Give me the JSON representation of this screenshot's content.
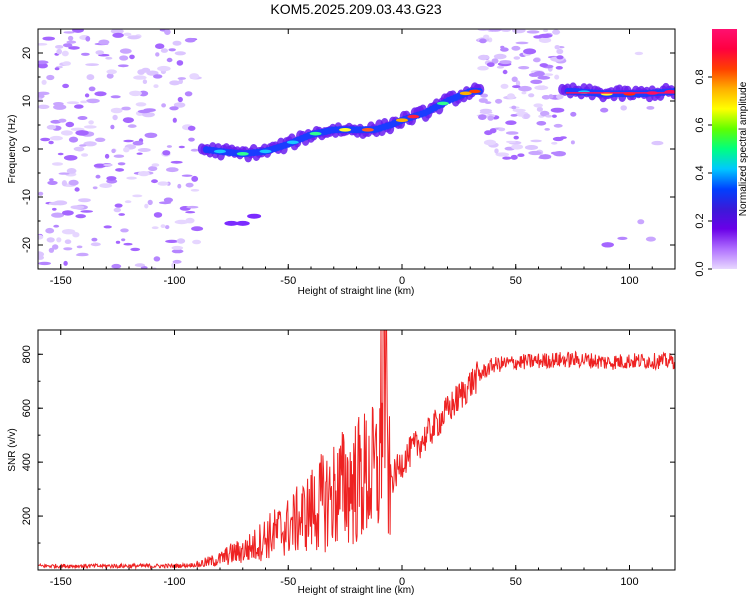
{
  "title": "KOM5.2025.209.03.43.G23",
  "chart_data": [
    {
      "type": "heatmap",
      "xlabel": "Height of straight line (km)",
      "ylabel": "Frequency (Hz)",
      "xlim": [
        -160,
        120
      ],
      "ylim": [
        -25,
        25
      ],
      "x_ticks": [
        -150,
        -100,
        -50,
        0,
        50,
        100
      ],
      "y_ticks": [
        -20,
        -10,
        0,
        10,
        20
      ],
      "colorbar": {
        "label": "Normalized spectral amplitude",
        "range": [
          0,
          1
        ],
        "ticks": [
          "0.0",
          "0.2",
          "0.4",
          "0.6",
          "0.8"
        ],
        "colors": [
          "#e8d8ff",
          "#b070ff",
          "#6a00e8",
          "#3a1ad8",
          "#0040ff",
          "#00c8ff",
          "#00ff80",
          "#60ff00",
          "#ffff00",
          "#ffb000",
          "#ff4000",
          "#ff0040",
          "#ff1070"
        ]
      },
      "ridge_frequency": {
        "x": [
          -88,
          -80,
          -70,
          -60,
          -50,
          -40,
          -30,
          -20,
          -12,
          -5,
          0,
          10,
          20,
          30,
          35,
          50,
          65,
          75,
          90,
          105,
          120
        ],
        "y": [
          0,
          -0.5,
          -1,
          -0.5,
          1,
          3,
          4,
          4,
          4,
          5,
          6,
          7.5,
          10,
          12,
          12,
          12,
          12,
          12,
          11.5,
          11.5,
          12
        ]
      }
    },
    {
      "type": "line",
      "xlabel": "Height of straight line (km)",
      "ylabel": "SNR (v/v)",
      "xlim": [
        -160,
        120
      ],
      "ylim": [
        0,
        890
      ],
      "x_ticks": [
        -150,
        -100,
        -50,
        0,
        50,
        100
      ],
      "y_ticks": [
        200,
        400,
        600,
        800
      ],
      "series": [
        {
          "color": "#ee2222",
          "x": [
            -160,
            -140,
            -120,
            -100,
            -90,
            -80,
            -75,
            -70,
            -65,
            -60,
            -55,
            -50,
            -45,
            -40,
            -35,
            -30,
            -25,
            -20,
            -15,
            -10,
            -8,
            -6,
            -4,
            -2,
            0,
            5,
            10,
            15,
            20,
            25,
            30,
            35,
            40,
            50,
            60,
            70,
            80,
            90,
            100,
            110,
            120
          ],
          "y": [
            15,
            15,
            15,
            15,
            20,
            40,
            60,
            70,
            90,
            120,
            140,
            160,
            190,
            220,
            250,
            280,
            310,
            330,
            350,
            360,
            880,
            330,
            340,
            370,
            400,
            450,
            490,
            540,
            590,
            640,
            690,
            730,
            760,
            770,
            775,
            780,
            780,
            770,
            775,
            775,
            775
          ]
        }
      ]
    }
  ]
}
